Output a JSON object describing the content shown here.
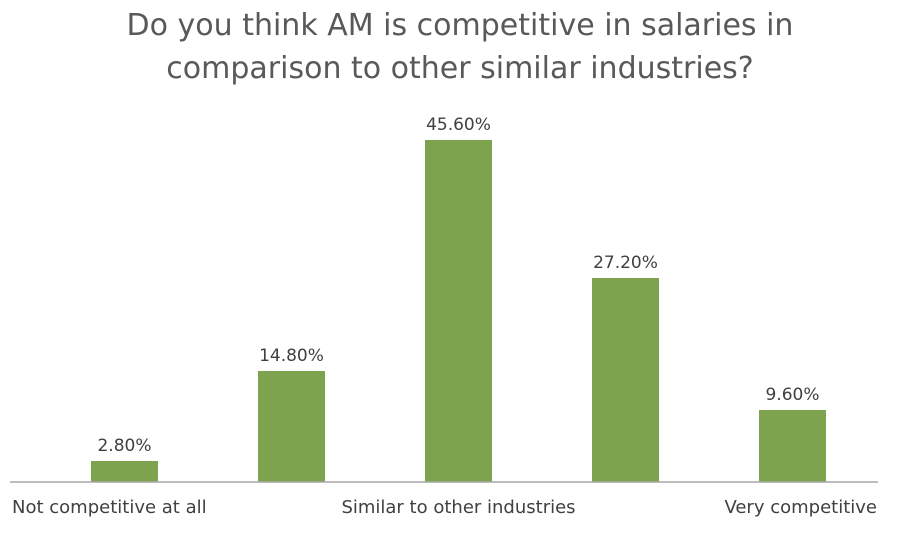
{
  "chart_data": {
    "type": "bar",
    "title_lines": [
      "Do you think AM is competitive in salaries in",
      "comparison to other similar industries?"
    ],
    "categories": [
      "Not competitive at all",
      "",
      "Similar to other industries",
      "",
      "Very competitive"
    ],
    "values": [
      2.8,
      14.8,
      45.6,
      27.2,
      9.6
    ],
    "data_labels": [
      "2.80%",
      "14.80%",
      "45.60%",
      "27.20%",
      "9.60%"
    ],
    "xlabel": "",
    "ylabel": "",
    "ylim": [
      0,
      50
    ],
    "grid": false,
    "legend": "none",
    "bar_color": "#7da34f",
    "axis_color": "#a6a6a6"
  }
}
